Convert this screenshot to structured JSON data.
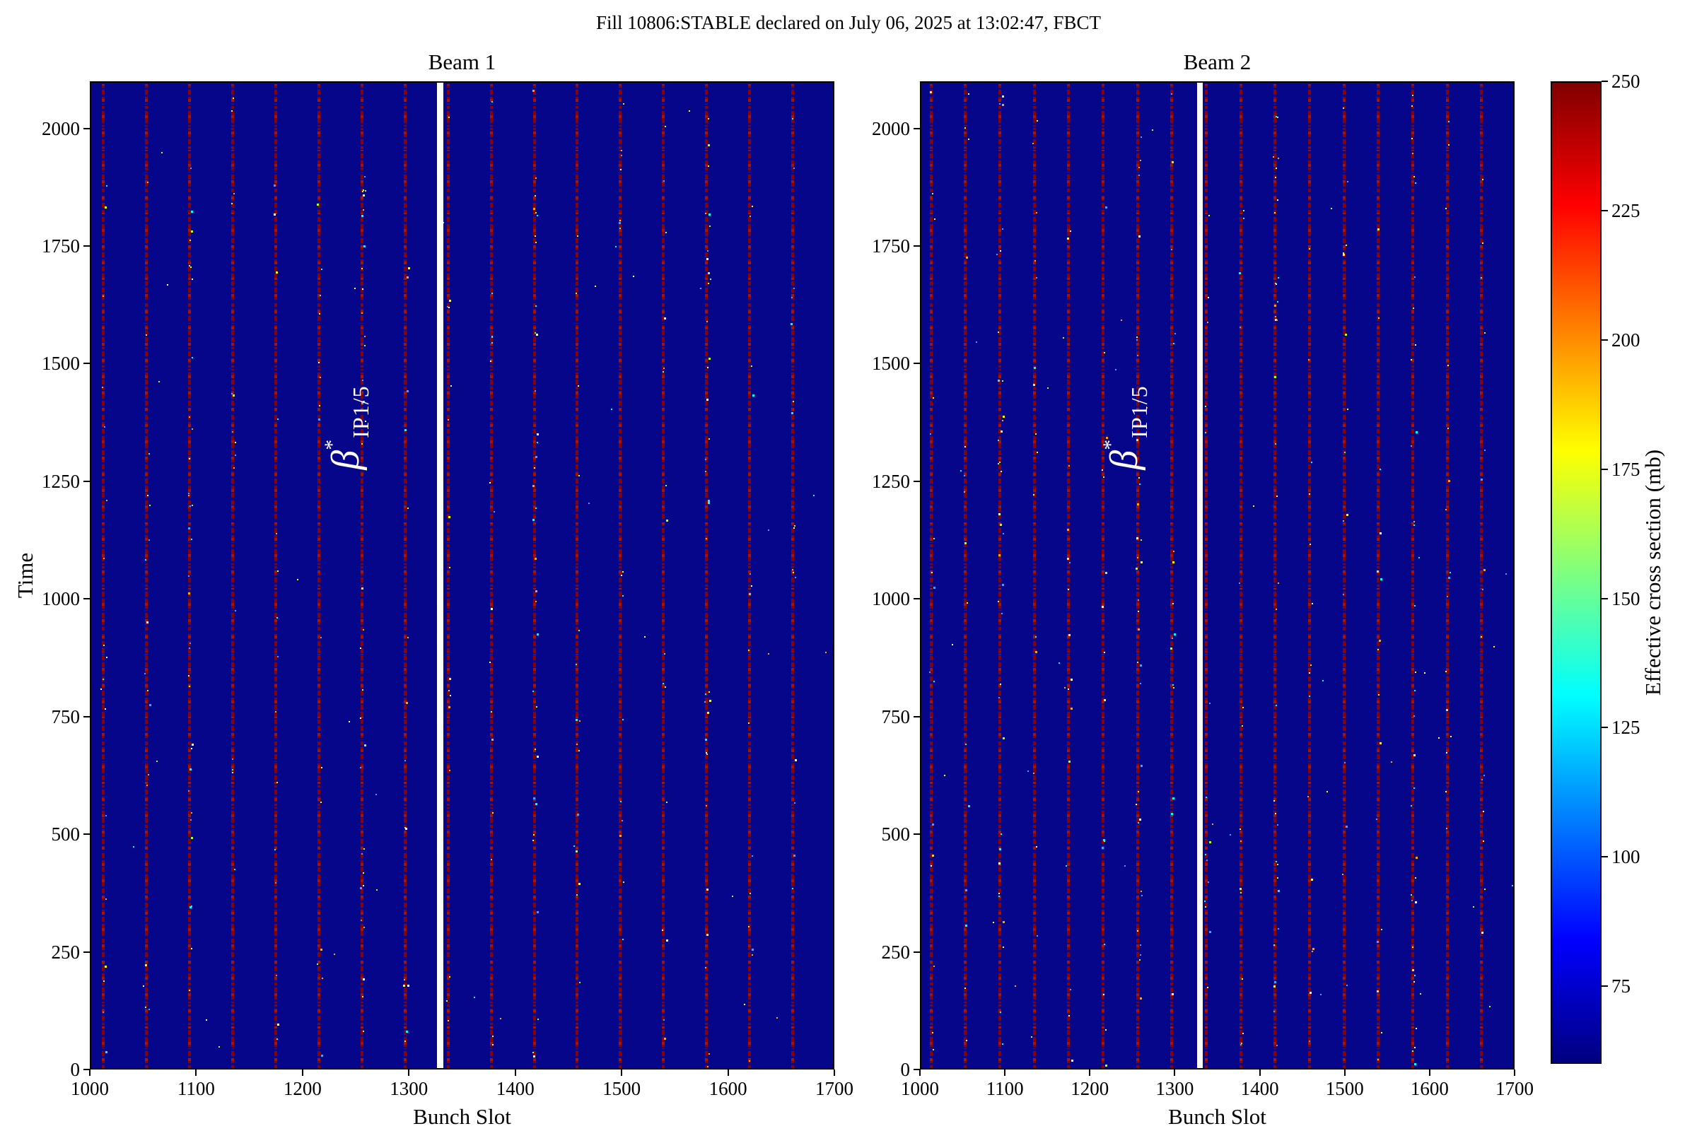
{
  "figure": {
    "suptitle": "Fill 10806:STABLE declared on July 06, 2025 at 13:02:47, FBCT"
  },
  "annotation": {
    "base": "β",
    "sup": "*",
    "sub": "IP1/5"
  },
  "colors": {
    "heatmap_background": "#050689",
    "train_line": "#8b0000",
    "train_line_bright": "#a51505",
    "annotation_text": "#ffffff",
    "axis": "#000000",
    "missing_band": "#ffffff",
    "speck_palette": [
      "#ffff00",
      "#00ffff",
      "#ffffff",
      "#ffa500",
      "#adff2f",
      "#4f9bff"
    ]
  },
  "chart_data": [
    {
      "type": "heatmap",
      "title": "Beam 1",
      "xlabel": "Bunch Slot",
      "ylabel": "Time",
      "xlim": [
        1000,
        1700
      ],
      "ylim": [
        0,
        2100
      ],
      "xticks": [
        1000,
        1100,
        1200,
        1300,
        1400,
        1500,
        1600,
        1700
      ],
      "yticks": [
        0,
        250,
        500,
        750,
        1000,
        1250,
        1500,
        1750,
        2000
      ],
      "grid": false,
      "legend": false,
      "values_description": "Nearly uniform background around 60 mb (dark navy) with vertical dark-red columns ~250 mb at the head of each bunch train; sparse bright specks; one white column of missing data",
      "background_value_mb": 60,
      "train_head_value_mb": 245,
      "train_lines": {
        "first_slot": 1011.5,
        "spacing_slots": 40.5,
        "count": 18
      },
      "missing_band_slots": [
        1325,
        1331
      ],
      "annotation": "β*IP1/5",
      "annotation_position": {
        "bunch_slot": 1240,
        "time": 1367
      }
    },
    {
      "type": "heatmap",
      "title": "Beam 2",
      "xlabel": "Bunch Slot",
      "ylabel": "",
      "xlim": [
        1000,
        1700
      ],
      "ylim": [
        0,
        2100
      ],
      "xticks": [
        1000,
        1100,
        1200,
        1300,
        1400,
        1500,
        1600,
        1700
      ],
      "yticks": [
        0,
        250,
        500,
        750,
        1000,
        1250,
        1500,
        1750,
        2000
      ],
      "grid": false,
      "legend": false,
      "values_description": "Nearly uniform background around 60 mb (dark navy) with vertical dark-red columns ~250 mb at the head of each bunch train; sparse bright specks; one white column of missing data",
      "background_value_mb": 60,
      "train_head_value_mb": 245,
      "train_lines": {
        "first_slot": 1011.5,
        "spacing_slots": 40.5,
        "count": 18
      },
      "missing_band_slots": [
        1325,
        1331
      ],
      "annotation": "β*IP1/5",
      "annotation_position": {
        "bunch_slot": 1240,
        "time": 1367
      }
    },
    {
      "type": "colorbar",
      "label": "Effective cross section (mb)",
      "colormap": "jet",
      "vmin": 60,
      "vmax": 250,
      "ticks": [
        75,
        100,
        125,
        150,
        175,
        200,
        225,
        250
      ],
      "gradient_stops_top_to_bottom": [
        [
          "#800000",
          0
        ],
        [
          "#ff0000",
          12.5
        ],
        [
          "#ffff00",
          37.5
        ],
        [
          "#00ffff",
          62.5
        ],
        [
          "#0000ff",
          87.5
        ],
        [
          "#000080",
          100
        ]
      ]
    }
  ]
}
